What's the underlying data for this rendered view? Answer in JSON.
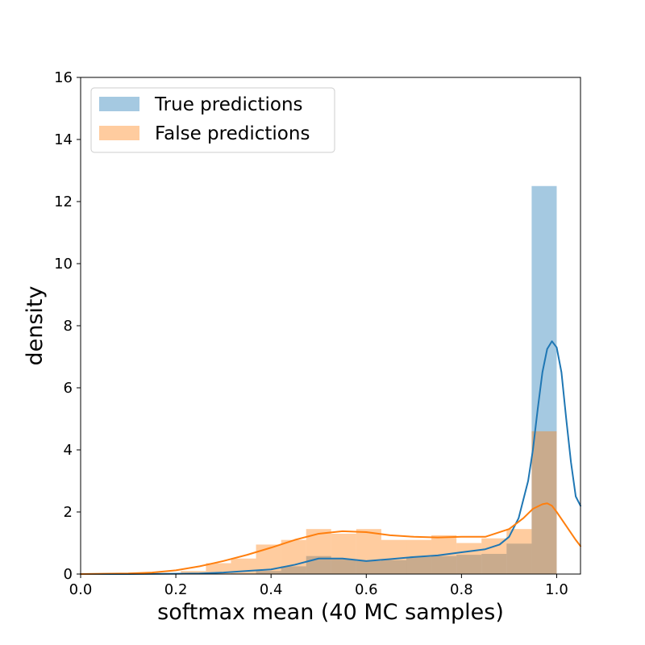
{
  "chart_data": {
    "type": "histogram",
    "xlabel": "softmax mean (40 MC samples)",
    "ylabel": "density",
    "xlim": [
      0.0,
      1.05
    ],
    "ylim": [
      0,
      16
    ],
    "x_ticks": [
      "0.0",
      "0.2",
      "0.4",
      "0.6",
      "0.8",
      "1.0"
    ],
    "y_ticks": [
      "0",
      "2",
      "4",
      "6",
      "8",
      "10",
      "12",
      "14",
      "16"
    ],
    "legend_position": "upper-left",
    "grid": false,
    "bin_edges": [
      0.0,
      0.0526,
      0.1053,
      0.1579,
      0.2105,
      0.2632,
      0.3158,
      0.3684,
      0.4211,
      0.4737,
      0.5263,
      0.5789,
      0.6316,
      0.6842,
      0.7368,
      0.7895,
      0.8421,
      0.8947,
      0.9474,
      1.0
    ],
    "series": [
      {
        "name": "True predictions",
        "color": "#1f77b4",
        "bar_alpha": 0.4,
        "hist_density": [
          0,
          0,
          0,
          0,
          0,
          0,
          0.02,
          0.1,
          0.25,
          0.58,
          0.48,
          0.42,
          0.45,
          0.55,
          0.58,
          0.62,
          0.65,
          0.98,
          12.5
        ],
        "kde": {
          "x": [
            0.0,
            0.1,
            0.2,
            0.25,
            0.3,
            0.35,
            0.4,
            0.45,
            0.5,
            0.55,
            0.6,
            0.65,
            0.7,
            0.75,
            0.8,
            0.85,
            0.88,
            0.9,
            0.92,
            0.94,
            0.95,
            0.96,
            0.97,
            0.98,
            0.99,
            1.0,
            1.01,
            1.02,
            1.03,
            1.04,
            1.05
          ],
          "y": [
            0,
            0,
            0.01,
            0.02,
            0.05,
            0.1,
            0.15,
            0.3,
            0.5,
            0.5,
            0.42,
            0.48,
            0.55,
            0.6,
            0.7,
            0.8,
            0.95,
            1.2,
            1.8,
            3.0,
            4.0,
            5.3,
            6.5,
            7.25,
            7.5,
            7.3,
            6.5,
            5.0,
            3.6,
            2.5,
            2.2
          ]
        }
      },
      {
        "name": "False predictions",
        "color": "#ff7f0e",
        "bar_alpha": 0.4,
        "hist_density": [
          0,
          0,
          0,
          0,
          0.1,
          0.35,
          0.5,
          0.95,
          1.1,
          1.45,
          1.3,
          1.45,
          1.1,
          1.1,
          1.25,
          1.0,
          1.15,
          1.45,
          4.6
        ],
        "kde": {
          "x": [
            0.0,
            0.1,
            0.15,
            0.2,
            0.25,
            0.3,
            0.35,
            0.4,
            0.45,
            0.5,
            0.55,
            0.6,
            0.65,
            0.7,
            0.75,
            0.8,
            0.85,
            0.9,
            0.93,
            0.95,
            0.97,
            0.98,
            0.99,
            1.0,
            1.02,
            1.04,
            1.05
          ],
          "y": [
            0,
            0.02,
            0.05,
            0.12,
            0.25,
            0.42,
            0.62,
            0.85,
            1.1,
            1.3,
            1.38,
            1.35,
            1.25,
            1.2,
            1.18,
            1.2,
            1.2,
            1.45,
            1.8,
            2.1,
            2.25,
            2.28,
            2.2,
            2.0,
            1.55,
            1.1,
            0.9
          ]
        }
      }
    ]
  }
}
